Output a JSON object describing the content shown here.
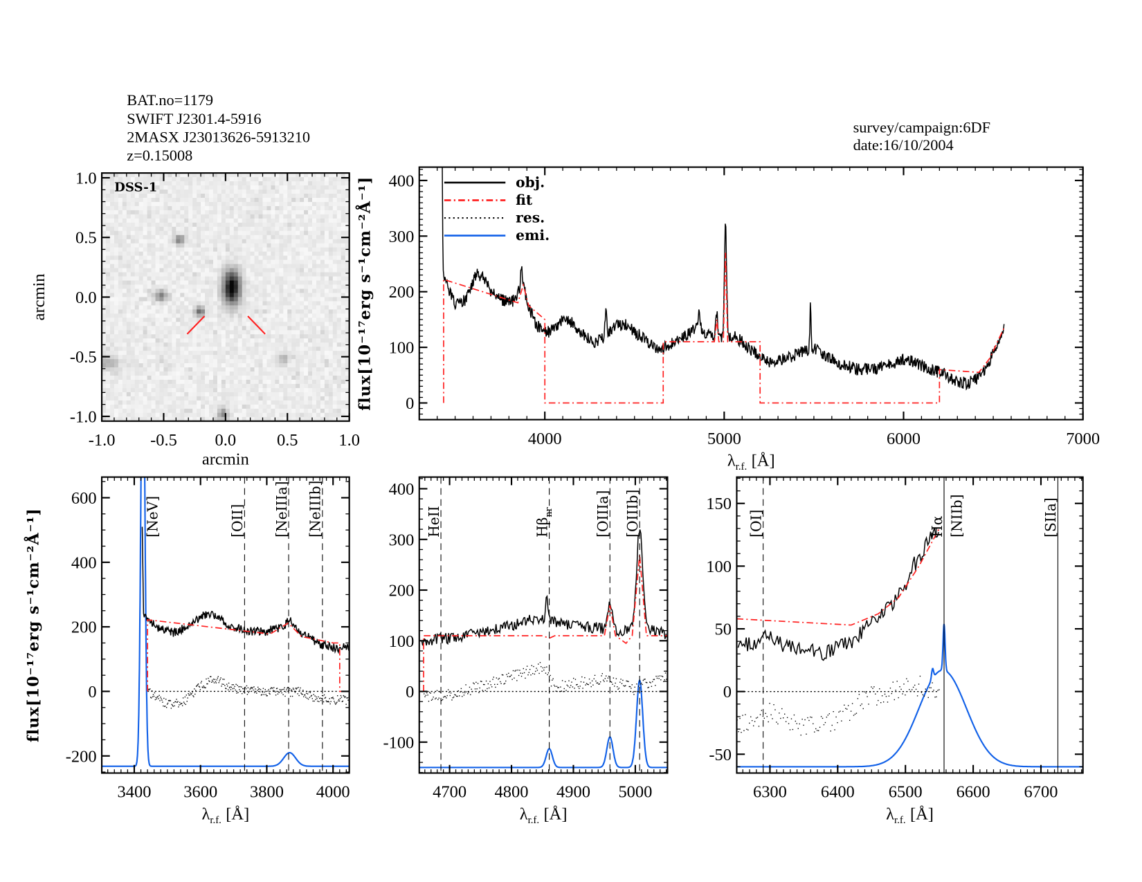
{
  "header": {
    "left_lines": [
      "BAT.no=1179",
      "SWIFT J2301.4-5916",
      "2MASX J23013626-5913210",
      "z=0.15008"
    ],
    "right_lines": [
      "survey/campaign:6DF",
      "date:16/10/2004"
    ]
  },
  "colors": {
    "obj": "#000000",
    "fit": "#ff2020",
    "res": "#000000",
    "emi": "#1060e8",
    "marker_red": "#ff2020",
    "marker_black": "#000000"
  },
  "chart_data": [
    {
      "id": "image",
      "type": "heatmap",
      "title": "DSS-1",
      "xlabel": "arcmin",
      "ylabel": "arcmin",
      "xlim": [
        -1.0,
        1.0
      ],
      "ylim": [
        -1.04,
        1.04
      ],
      "xticks": [
        "-1.0",
        "-0.5",
        "0.0",
        "0.5",
        "1.0"
      ],
      "yticks": [
        "-1.0",
        "-0.5",
        "0.0",
        "0.5",
        "1.0"
      ],
      "colormap": "inverted-grayscale",
      "sources": [
        {
          "x": 0.05,
          "y": 0.08,
          "intensity": 1.0,
          "sx": 0.05,
          "sy": 0.1
        },
        {
          "x": -0.37,
          "y": 0.48,
          "intensity": 0.45,
          "sx": 0.03,
          "sy": 0.03
        },
        {
          "x": -0.52,
          "y": 0.01,
          "intensity": 0.45,
          "sx": 0.04,
          "sy": 0.03
        },
        {
          "x": -0.21,
          "y": -0.12,
          "intensity": 0.55,
          "sx": 0.03,
          "sy": 0.03
        },
        {
          "x": -0.95,
          "y": -0.55,
          "intensity": 0.3,
          "sx": 0.06,
          "sy": 0.04
        },
        {
          "x": 0.47,
          "y": -0.52,
          "intensity": 0.25,
          "sx": 0.03,
          "sy": 0.03
        },
        {
          "x": -0.02,
          "y": -0.98,
          "intensity": 0.4,
          "sx": 0.03,
          "sy": 0.04
        }
      ],
      "marker_segments": [
        [
          -0.31,
          -0.31,
          -0.17,
          -0.16
        ],
        [
          0.18,
          -0.16,
          0.32,
          -0.31
        ]
      ]
    },
    {
      "id": "overview",
      "type": "line",
      "xlabel_symbol": "λ",
      "xlabel_sub": "r.f.",
      "xlabel_unit": "[Å]",
      "ylabel": "flux[10⁻¹⁷erg s⁻¹cm⁻²Å⁻¹]",
      "xlim": [
        3300,
        7000
      ],
      "ylim": [
        -30,
        424
      ],
      "xticks": [
        4000,
        5000,
        6000,
        7000
      ],
      "yticks": [
        0,
        100,
        200,
        300,
        400
      ],
      "legend": {
        "position": "top-left",
        "entries": [
          "obj.",
          "fit",
          "res.",
          "emi."
        ]
      },
      "obj": {
        "points": [
          [
            3428,
            440
          ],
          [
            3432,
            238
          ],
          [
            3460,
            205
          ],
          [
            3500,
            178
          ],
          [
            3560,
            185
          ],
          [
            3620,
            232
          ],
          [
            3660,
            225
          ],
          [
            3700,
            200
          ],
          [
            3760,
            186
          ],
          [
            3820,
            182
          ],
          [
            3860,
            205
          ],
          [
            3880,
            212
          ],
          [
            3900,
            182
          ],
          [
            3950,
            142
          ],
          [
            4000,
            125
          ],
          [
            4050,
            132
          ],
          [
            4100,
            152
          ],
          [
            4150,
            146
          ],
          [
            4200,
            125
          ],
          [
            4280,
            106
          ],
          [
            4350,
            125
          ],
          [
            4400,
            140
          ],
          [
            4450,
            140
          ],
          [
            4500,
            128
          ],
          [
            4600,
            104
          ],
          [
            4650,
            96
          ],
          [
            4700,
            106
          ],
          [
            4800,
            124
          ],
          [
            4850,
            140
          ],
          [
            4900,
            122
          ],
          [
            4959,
            120
          ],
          [
            5050,
            120
          ],
          [
            5100,
            110
          ],
          [
            5200,
            82
          ],
          [
            5250,
            72
          ],
          [
            5350,
            80
          ],
          [
            5450,
            95
          ],
          [
            5500,
            98
          ],
          [
            5550,
            88
          ],
          [
            5650,
            70
          ],
          [
            5750,
            60
          ],
          [
            5850,
            62
          ],
          [
            5950,
            72
          ],
          [
            6000,
            78
          ],
          [
            6050,
            75
          ],
          [
            6100,
            66
          ],
          [
            6200,
            55
          ],
          [
            6300,
            40
          ],
          [
            6350,
            35
          ],
          [
            6420,
            46
          ],
          [
            6480,
            75
          ],
          [
            6520,
            108
          ],
          [
            6560,
            132
          ]
        ],
        "lines": [
          [
            4340,
            40,
            5
          ],
          [
            4861,
            35,
            5
          ],
          [
            4959,
            45,
            5
          ],
          [
            5007,
            200,
            6
          ],
          [
            5481,
            85,
            3
          ],
          [
            3870,
            35,
            4
          ]
        ],
        "noise": 11
      },
      "fit": [
        [
          3436,
          0
        ],
        [
          3436,
          222
        ],
        [
          3850,
          180
        ],
        [
          3880,
          212
        ],
        [
          3910,
          175
        ],
        [
          4000,
          150
        ],
        [
          4000,
          0
        ],
        [
          4660,
          0
        ],
        [
          4660,
          110
        ],
        [
          4945,
          110
        ],
        [
          4959,
          150
        ],
        [
          4970,
          110
        ],
        [
          4995,
          110
        ],
        [
          5007,
          270
        ],
        [
          5020,
          110
        ],
        [
          5200,
          110
        ],
        [
          5200,
          0
        ],
        [
          6200,
          0
        ],
        [
          6200,
          60
        ],
        [
          6420,
          55
        ],
        [
          6480,
          80
        ],
        [
          6560,
          135
        ]
      ]
    },
    {
      "id": "zoom-neon",
      "type": "line",
      "xlabel_symbol": "λ",
      "xlabel_sub": "r.f.",
      "xlabel_unit": "[Å]",
      "ylabel": "flux[10⁻¹⁷erg s⁻¹cm⁻²Å⁻¹]",
      "xlim": [
        3302,
        4049
      ],
      "ylim": [
        -253,
        664
      ],
      "xticks": [
        3400,
        3600,
        3800,
        4000
      ],
      "yticks": [
        -200,
        0,
        200,
        400,
        600
      ],
      "markers": [
        {
          "label": "[NeV]",
          "wavelength": 3426,
          "style": "none",
          "color": "red"
        },
        {
          "label": "[OII]",
          "wavelength": 3733,
          "style": "dashed",
          "color": "red"
        },
        {
          "label": "[NeIIIa]",
          "wavelength": 3866,
          "style": "dashed",
          "color": "red"
        },
        {
          "label": "[NeIIIb]",
          "wavelength": 3968,
          "style": "dashed",
          "color": "red"
        }
      ],
      "obj": {
        "points": [
          [
            3424,
            510
          ],
          [
            3428,
            235
          ],
          [
            3440,
            222
          ],
          [
            3480,
            192
          ],
          [
            3520,
            182
          ],
          [
            3560,
            202
          ],
          [
            3620,
            242
          ],
          [
            3660,
            222
          ],
          [
            3700,
            200
          ],
          [
            3750,
            186
          ],
          [
            3800,
            186
          ],
          [
            3850,
            202
          ],
          [
            3870,
            222
          ],
          [
            3900,
            186
          ],
          [
            3950,
            150
          ],
          [
            4000,
            135
          ],
          [
            4049,
            135
          ]
        ],
        "lines": [],
        "noise": 14
      },
      "fit": [
        [
          3440,
          0
        ],
        [
          3440,
          222
        ],
        [
          3810,
          178
        ],
        [
          3865,
          212
        ],
        [
          3905,
          170
        ],
        [
          4000,
          150
        ],
        [
          4020,
          150
        ],
        [
          4020,
          0
        ],
        [
          4049,
          0
        ]
      ],
      "res": {
        "start": 3440,
        "points": [
          [
            3440,
            0
          ],
          [
            3500,
            -40
          ],
          [
            3550,
            -30
          ],
          [
            3600,
            20
          ],
          [
            3640,
            40
          ],
          [
            3700,
            10
          ],
          [
            3800,
            0
          ],
          [
            3900,
            0
          ],
          [
            3950,
            -20
          ],
          [
            4000,
            -25
          ]
        ],
        "noise": 14
      },
      "emi": {
        "baseline": -232,
        "gaussians": [
          [
            3426,
            1400,
            6
          ],
          [
            3869,
            42,
            18
          ]
        ]
      }
    },
    {
      "id": "zoom-hbeta-oiii",
      "type": "line",
      "xlabel_symbol": "λ",
      "xlabel_sub": "r.f.",
      "xlabel_unit": "[Å]",
      "xlim": [
        4651,
        5052
      ],
      "ylim": [
        -161,
        423
      ],
      "xticks": [
        4700,
        4800,
        4900,
        5000
      ],
      "yticks": [
        -100,
        0,
        100,
        200,
        300,
        400
      ],
      "markers": [
        {
          "label": "HeII",
          "wavelength": 4686,
          "style": "dashed",
          "color": "red"
        },
        {
          "label": "Hβ",
          "sub": "nr",
          "wavelength": 4861,
          "style": "dashed",
          "color": "red"
        },
        {
          "label": "[OIIIa]",
          "wavelength": 4959,
          "style": "dashed",
          "color": "black"
        },
        {
          "label": "[OIIIb]",
          "wavelength": 5007,
          "style": "dashed",
          "color": "black"
        }
      ],
      "obj": {
        "points": [
          [
            4655,
            100
          ],
          [
            4700,
            105
          ],
          [
            4750,
            115
          ],
          [
            4800,
            130
          ],
          [
            4840,
            145
          ],
          [
            4900,
            130
          ],
          [
            4940,
            125
          ],
          [
            4975,
            120
          ],
          [
            4990,
            120
          ],
          [
            5040,
            120
          ],
          [
            5052,
            110
          ]
        ],
        "lines": [
          [
            4959,
            55,
            4
          ],
          [
            5007,
            200,
            5
          ],
          [
            4857,
            45,
            2
          ]
        ],
        "noise": 11
      },
      "fit": [
        [
          4658,
          0
        ],
        [
          4658,
          110
        ],
        [
          4850,
          110
        ],
        [
          4861,
          105
        ],
        [
          4870,
          110
        ],
        [
          4950,
          110
        ],
        [
          4959,
          170
        ],
        [
          4968,
          110
        ],
        [
          4985,
          95
        ],
        [
          4995,
          110
        ],
        [
          5007,
          270
        ],
        [
          5018,
          110
        ],
        [
          5052,
          110
        ]
      ],
      "res": {
        "start": 4658,
        "points": [
          [
            4658,
            -10
          ],
          [
            4700,
            -5
          ],
          [
            4750,
            10
          ],
          [
            4800,
            30
          ],
          [
            4850,
            50
          ],
          [
            4870,
            10
          ],
          [
            4950,
            25
          ],
          [
            5000,
            5
          ],
          [
            5052,
            35
          ]
        ],
        "noise": 12
      },
      "emi": {
        "baseline": -150,
        "gaussians": [
          [
            4861,
            37,
            5
          ],
          [
            4959,
            60,
            5
          ],
          [
            5007,
            172,
            5
          ]
        ]
      }
    },
    {
      "id": "zoom-halpha",
      "type": "line",
      "xlabel_symbol": "λ",
      "xlabel_sub": "r.f.",
      "xlabel_unit": "[Å]",
      "xlim": [
        6251,
        6762
      ],
      "ylim": [
        -65,
        171
      ],
      "xticks": [
        6300,
        6400,
        6500,
        6600,
        6700
      ],
      "yticks": [
        -50,
        0,
        50,
        100,
        150
      ],
      "markers": [
        {
          "label": "[OI]",
          "wavelength": 6290,
          "style": "dashed",
          "color": "red"
        },
        {
          "label": "Hα",
          "wavelength": 6557,
          "style": "solid",
          "color": "red"
        },
        {
          "label": "[NIIb]",
          "wavelength": 6557,
          "style": "solid",
          "color": "red"
        },
        {
          "label": "[SIIa]",
          "wavelength": 6725,
          "style": "solid",
          "color": "red"
        }
      ],
      "obj": {
        "points": [
          [
            6253,
            35
          ],
          [
            6280,
            40
          ],
          [
            6300,
            46
          ],
          [
            6320,
            36
          ],
          [
            6350,
            36
          ],
          [
            6380,
            30
          ],
          [
            6400,
            35
          ],
          [
            6420,
            40
          ],
          [
            6440,
            50
          ],
          [
            6460,
            60
          ],
          [
            6480,
            70
          ],
          [
            6500,
            85
          ],
          [
            6510,
            100
          ],
          [
            6520,
            105
          ],
          [
            6530,
            118
          ],
          [
            6545,
            126
          ],
          [
            6550,
            120
          ]
        ],
        "lines": [],
        "noise": 6
      },
      "fit": [
        [
          6251,
          58
        ],
        [
          6420,
          53
        ],
        [
          6460,
          62
        ],
        [
          6490,
          75
        ],
        [
          6520,
          100
        ],
        [
          6550,
          130
        ]
      ],
      "res": {
        "start": 6251,
        "end": 6550,
        "points": [
          [
            6253,
            -28
          ],
          [
            6300,
            -15
          ],
          [
            6350,
            -28
          ],
          [
            6400,
            -22
          ],
          [
            6440,
            -5
          ],
          [
            6480,
            0
          ],
          [
            6520,
            5
          ],
          [
            6550,
            0
          ]
        ],
        "noise": 8
      },
      "emi": {
        "baseline": -60,
        "gaussians": [
          [
            6555,
            77,
            35
          ],
          [
            6557,
            37,
            1.5
          ],
          [
            6540,
            8,
            1.5
          ]
        ]
      }
    }
  ]
}
